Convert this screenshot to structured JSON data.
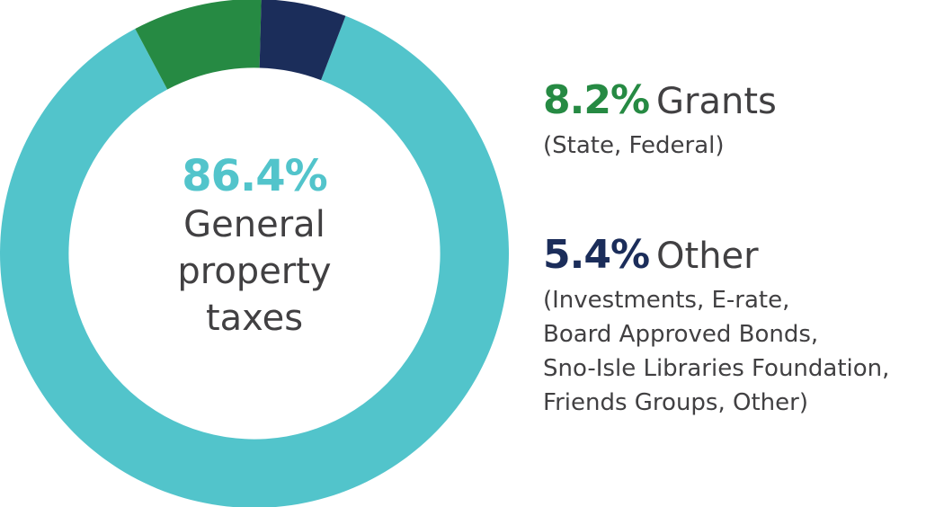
{
  "chart_data": {
    "type": "pie",
    "title": "",
    "center_label": {
      "value_label": "86.4%",
      "name": "General property taxes"
    },
    "slices": [
      {
        "label": "General property taxes",
        "value": 86.4,
        "value_label": "86.4%",
        "detail": "",
        "color": "#52c4cb"
      },
      {
        "label": "Grants",
        "value": 8.2,
        "value_label": "8.2%",
        "detail": "(State, Federal)",
        "color": "#268a43"
      },
      {
        "label": "Other",
        "value": 5.4,
        "value_label": "5.4%",
        "detail": "(Investments, E-rate,\nBoard Approved Bonds,\nSno-Isle Libraries Foundation,\nFriends Groups, Other)",
        "color": "#1b2d5a"
      }
    ],
    "start_angle_deg": 21,
    "inner_radius_ratio": 0.73,
    "legend_position": "right",
    "label_text_color": "#414042"
  }
}
